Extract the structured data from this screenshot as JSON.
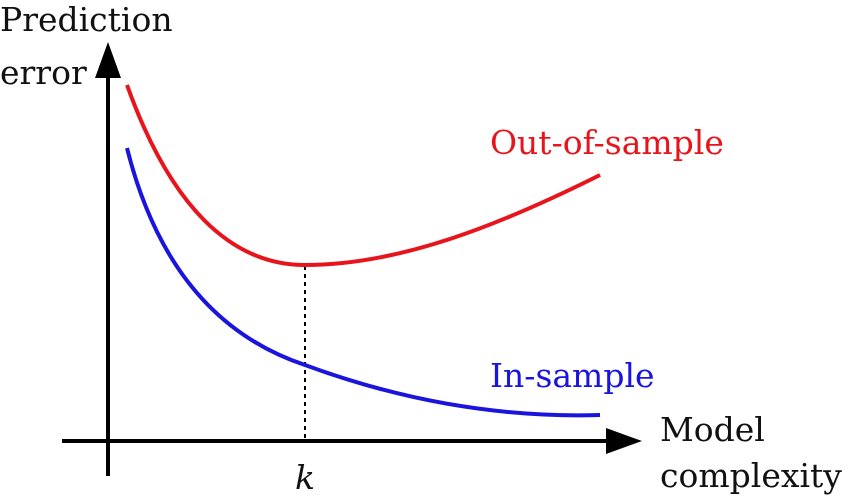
{
  "axes": {
    "y_label": [
      "Prediction",
      "error"
    ],
    "x_label": [
      "Model",
      "complexity"
    ],
    "marker": "k"
  },
  "curves": [
    {
      "label": "Out-of-sample",
      "color": "#e8141b"
    },
    {
      "label": "In-sample",
      "color": "#1a14dc"
    }
  ]
}
